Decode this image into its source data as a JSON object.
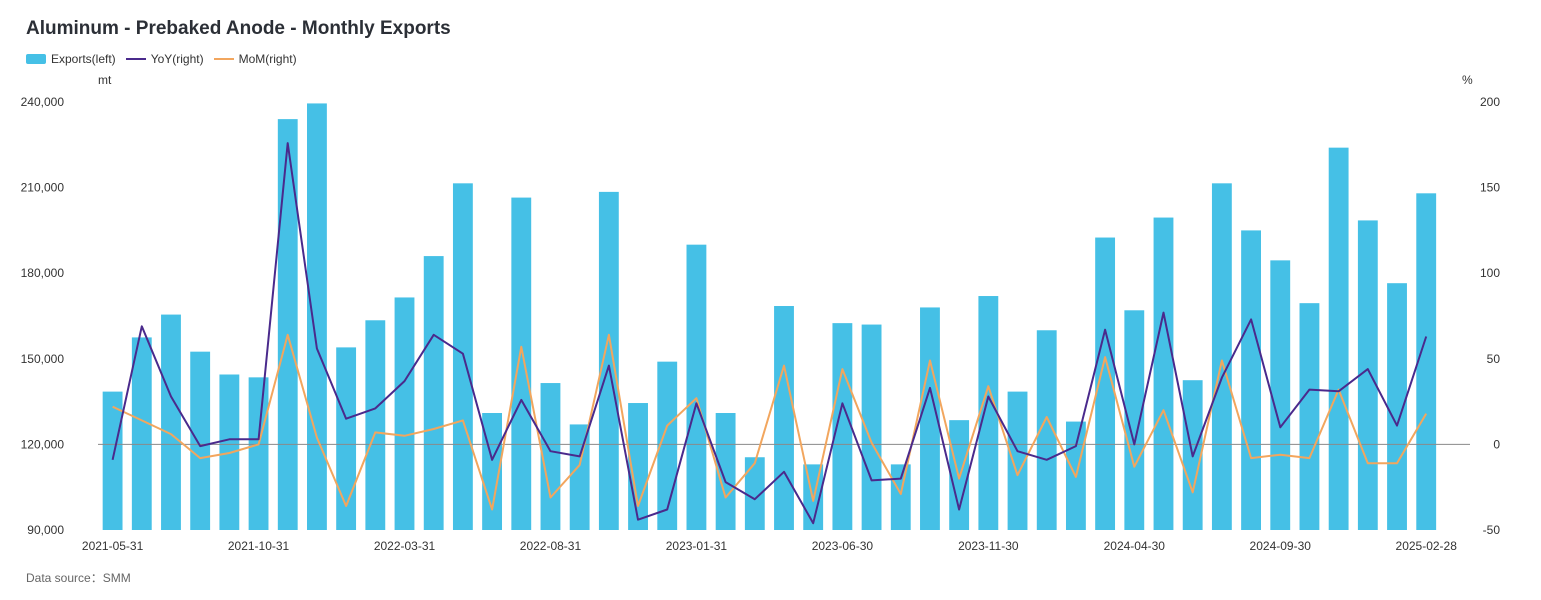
{
  "title": "Aluminum - Prebaked Anode - Monthly Exports",
  "source": "Data source：SMM",
  "legend": [
    {
      "label": "Exports(left)",
      "kind": "bar",
      "color": "#45c0e6"
    },
    {
      "label": "YoY(right)",
      "kind": "line",
      "color": "#4a2a8c"
    },
    {
      "label": "MoM(right)",
      "kind": "line",
      "color": "#f2a65e"
    }
  ],
  "left_unit": "mt",
  "right_unit": "%",
  "chart_data": {
    "type": "bar",
    "x": [
      "2021-05-31",
      "2021-06-30",
      "2021-07-31",
      "2021-08-31",
      "2021-09-30",
      "2021-10-31",
      "2021-11-30",
      "2021-12-31",
      "2022-01-31",
      "2022-02-28",
      "2022-03-31",
      "2022-04-30",
      "2022-05-31",
      "2022-06-30",
      "2022-07-31",
      "2022-08-31",
      "2022-09-30",
      "2022-10-31",
      "2022-11-30",
      "2022-12-31",
      "2023-01-31",
      "2023-02-28",
      "2023-03-31",
      "2023-04-30",
      "2023-05-31",
      "2023-06-30",
      "2023-07-31",
      "2023-08-31",
      "2023-09-30",
      "2023-10-31",
      "2023-11-30",
      "2023-12-31",
      "2024-01-31",
      "2024-02-29",
      "2024-03-31",
      "2024-04-30",
      "2024-05-31",
      "2024-06-30",
      "2024-07-31",
      "2024-08-31",
      "2024-09-30",
      "2024-10-31",
      "2024-11-30",
      "2024-12-31",
      "2025-01-31",
      "2025-02-28",
      "2025-03-31"
    ],
    "x_tick_labels": [
      "2021-05-31",
      "2021-10-31",
      "2022-03-31",
      "2022-08-31",
      "2023-01-31",
      "2023-06-30",
      "2023-11-30",
      "2024-04-30",
      "2024-09-30",
      "2025-02-28"
    ],
    "series": [
      {
        "name": "Exports(left)",
        "type": "bar",
        "axis": "left",
        "color": "#45c0e6",
        "values": [
          138500,
          157500,
          165500,
          152500,
          144500,
          143500,
          234000,
          239500,
          154000,
          163500,
          171500,
          186000,
          211500,
          131000,
          206500,
          141500,
          127000,
          208500,
          134500,
          149000,
          190000,
          131000,
          115500,
          168500,
          113000,
          162500,
          162000,
          113000,
          168000,
          128500,
          172000,
          138500,
          160000,
          128000,
          192500,
          167000,
          199500,
          142500,
          211500,
          195000,
          184500,
          169500,
          224000,
          198500,
          176500,
          208000,
          null
        ]
      },
      {
        "name": "YoY(right)",
        "type": "line",
        "axis": "right",
        "color": "#4a2a8c",
        "values": [
          -9,
          69,
          28,
          -1,
          3,
          3,
          176,
          56,
          15,
          21,
          37,
          64,
          53,
          -9,
          26,
          -4,
          -7,
          46,
          -44,
          -38,
          24,
          -22,
          -32,
          -16,
          -46,
          24,
          -21,
          -20,
          33,
          -38,
          28,
          -4,
          -9,
          -1,
          67,
          0,
          77,
          -7,
          39,
          73,
          10,
          32,
          31,
          44,
          11,
          63,
          null
        ]
      },
      {
        "name": "MoM(right)",
        "type": "line",
        "axis": "right",
        "color": "#f2a65e",
        "values": [
          22,
          14,
          6,
          -8,
          -5,
          0,
          64,
          4,
          -36,
          7,
          5,
          9,
          14,
          -38,
          57,
          -31,
          -12,
          64,
          -36,
          11,
          27,
          -31,
          -11,
          46,
          -33,
          44,
          1,
          -29,
          49,
          -20,
          34,
          -18,
          16,
          -19,
          51,
          -13,
          20,
          -28,
          49,
          -8,
          -6,
          -8,
          32,
          -11,
          -11,
          18,
          null
        ]
      }
    ],
    "y_left": {
      "min": 90000,
      "max": 240000,
      "ticks": [
        "90,000",
        "120,000",
        "150,000",
        "180,000",
        "210,000",
        "240,000"
      ],
      "tick_values": [
        90000,
        120000,
        150000,
        180000,
        210000,
        240000
      ]
    },
    "y_right": {
      "min": -50,
      "max": 200,
      "ticks": [
        "-50",
        "0",
        "50",
        "100",
        "150",
        "200"
      ],
      "tick_values": [
        -50,
        0,
        50,
        100,
        150,
        200
      ]
    },
    "grid": false,
    "legend_position": "top-left"
  }
}
